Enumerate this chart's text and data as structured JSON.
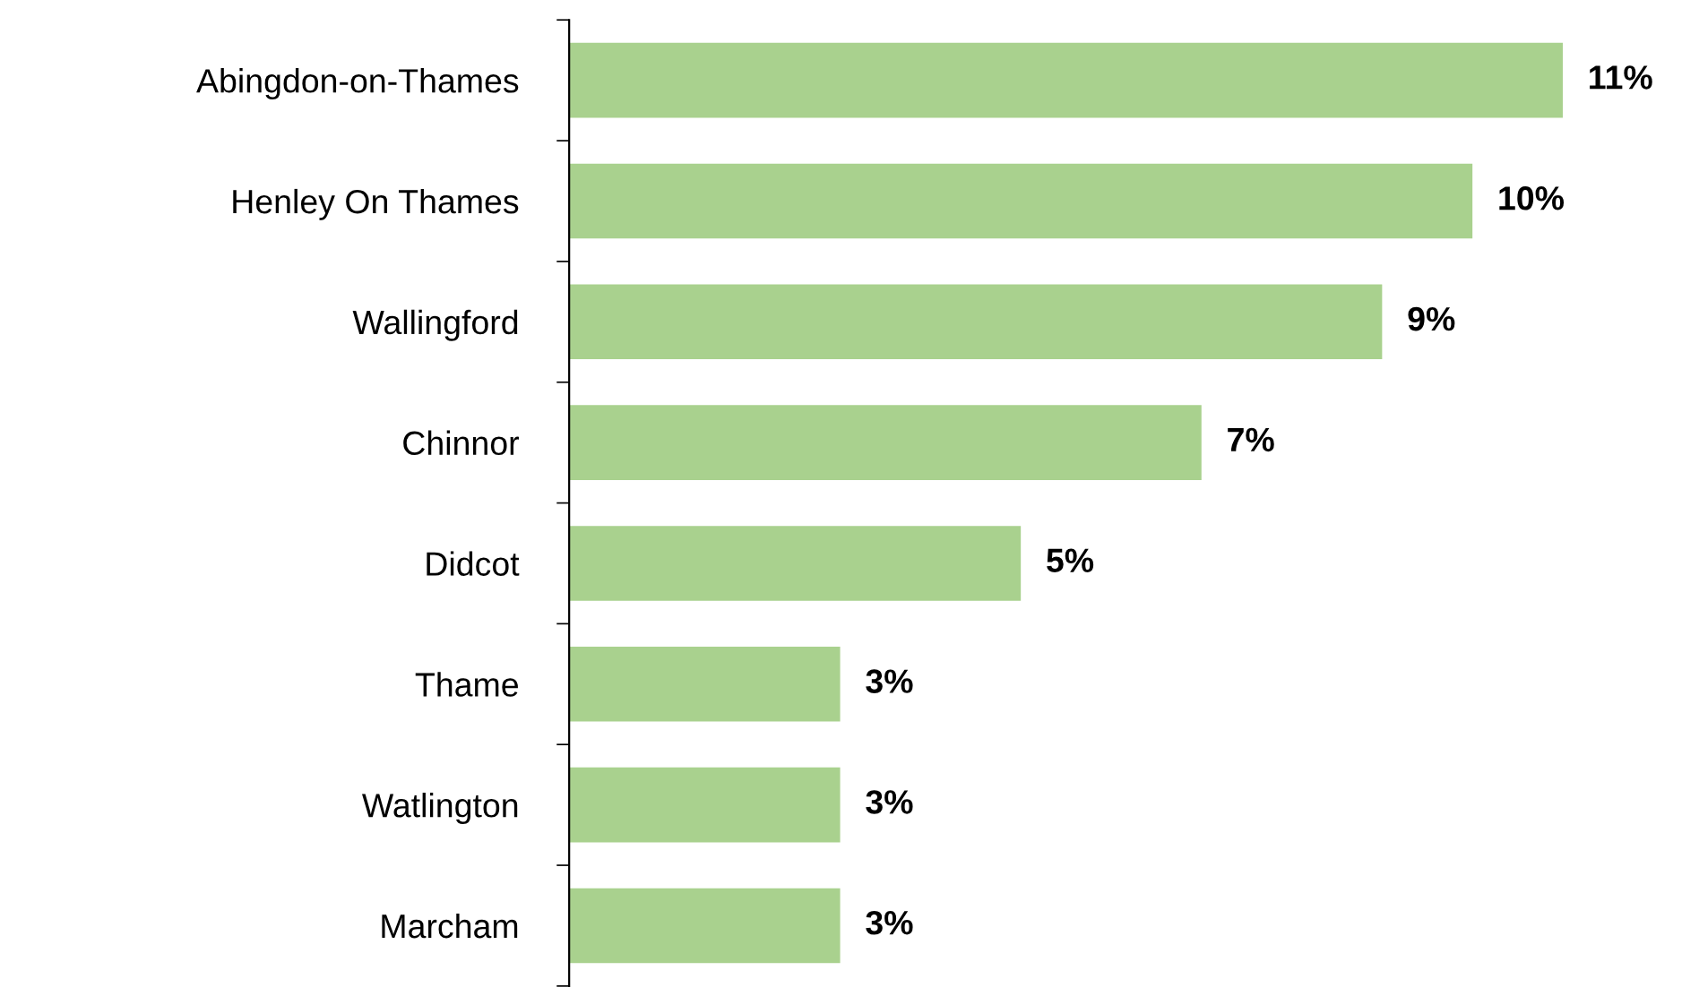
{
  "chart_data": {
    "type": "bar",
    "orientation": "horizontal",
    "categories": [
      "Abingdon-on-Thames",
      "Henley On Thames",
      "Wallingford",
      "Chinnor",
      "Didcot",
      "Thame",
      "Watlington",
      "Marcham"
    ],
    "values": [
      11,
      10,
      9,
      7,
      5,
      3,
      3,
      3
    ],
    "value_labels": [
      "11%",
      "10%",
      "9%",
      "7%",
      "5%",
      "3%",
      "3%",
      "3%"
    ],
    "color": "#a9d18e",
    "grid": false,
    "legend": false,
    "tick_labels": "y"
  }
}
